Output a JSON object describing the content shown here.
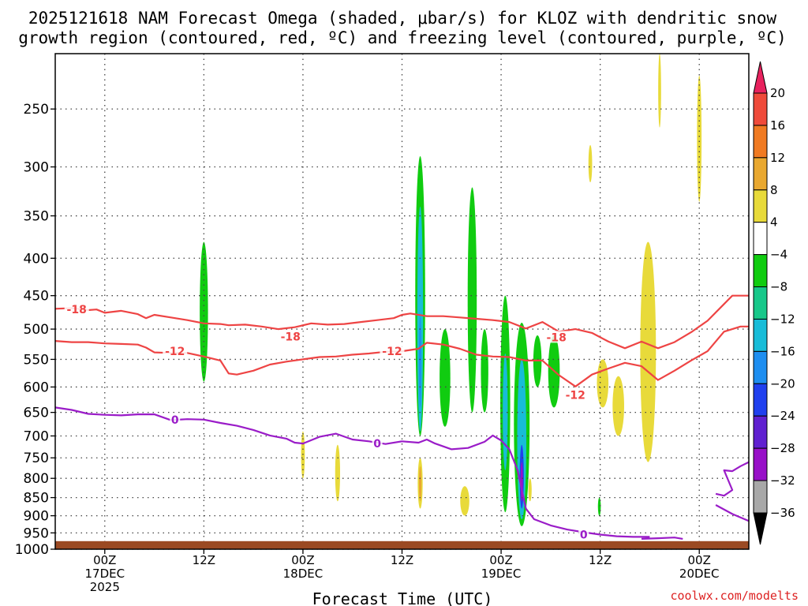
{
  "chart_data": {
    "type": "heatmap",
    "title_line1": "2025121618 NAM Forecast Omega (shaded, μbar/s) for KLOZ with dendritic snow",
    "title_line2": "growth region (contoured, red, ºC) and freezing level (contoured, purple, ºC)",
    "xlabel": "Forecast Time (UTC)",
    "ylabel": "",
    "x_unit": "forecast hour from 2025-12-16 18Z",
    "xlim": [
      0,
      84
    ],
    "ylim": [
      1000,
      210
    ],
    "y_scale": "log-pressure",
    "y_ticks": [
      250,
      300,
      350,
      400,
      450,
      500,
      550,
      600,
      650,
      700,
      750,
      800,
      850,
      900,
      950,
      1000
    ],
    "x_ticks": [
      {
        "x": 6,
        "line1": "00Z",
        "line2": "17DEC",
        "line3": "2025"
      },
      {
        "x": 18,
        "line1": "12Z",
        "line2": "",
        "line3": ""
      },
      {
        "x": 30,
        "line1": "00Z",
        "line2": "18DEC",
        "line3": ""
      },
      {
        "x": 42,
        "line1": "12Z",
        "line2": "",
        "line3": ""
      },
      {
        "x": 54,
        "line1": "00Z",
        "line2": "19DEC",
        "line3": ""
      },
      {
        "x": 66,
        "line1": "12Z",
        "line2": "",
        "line3": ""
      },
      {
        "x": 78,
        "line1": "00Z",
        "line2": "20DEC",
        "line3": ""
      }
    ],
    "grid": true,
    "colorbar": {
      "labels": [
        "20",
        "16",
        "12",
        "8",
        "4",
        "−4",
        "−8",
        "−12",
        "−16",
        "−20",
        "−24",
        "−28",
        "−32",
        "−36"
      ],
      "colors": [
        "#e8225e",
        "#ef4a3a",
        "#f07a22",
        "#e9a830",
        "#e8da3a",
        "#ffffff",
        "#10cc10",
        "#18c88a",
        "#18bcd8",
        "#1e8ef0",
        "#2040ee",
        "#6020d0",
        "#9810c8",
        "#a8a8a8",
        "#000000"
      ]
    },
    "omega_regions": [
      {
        "x": 18.0,
        "p0": 380,
        "p1": 590,
        "width": 1.0,
        "value": -6
      },
      {
        "x": 44.2,
        "p0": 290,
        "p1": 700,
        "width": 1.2,
        "value": -6
      },
      {
        "x": 44.2,
        "p0": 340,
        "p1": 690,
        "width": 0.7,
        "value": -12
      },
      {
        "x": 44.2,
        "p0": 480,
        "p1": 640,
        "width": 0.3,
        "value": -18
      },
      {
        "x": 47.2,
        "p0": 500,
        "p1": 680,
        "width": 1.3,
        "value": -6
      },
      {
        "x": 50.5,
        "p0": 320,
        "p1": 650,
        "width": 1.1,
        "value": -6
      },
      {
        "x": 52.0,
        "p0": 500,
        "p1": 650,
        "width": 0.9,
        "value": -6
      },
      {
        "x": 54.5,
        "p0": 450,
        "p1": 890,
        "width": 1.2,
        "value": -6
      },
      {
        "x": 54.5,
        "p0": 540,
        "p1": 780,
        "width": 0.6,
        "value": -12
      },
      {
        "x": 56.5,
        "p0": 490,
        "p1": 930,
        "width": 1.9,
        "value": -6
      },
      {
        "x": 56.5,
        "p0": 550,
        "p1": 910,
        "width": 1.1,
        "value": -12
      },
      {
        "x": 56.5,
        "p0": 720,
        "p1": 880,
        "width": 0.5,
        "value": -20
      },
      {
        "x": 56.5,
        "p0": 760,
        "p1": 860,
        "width": 0.25,
        "value": -30
      },
      {
        "x": 58.4,
        "p0": 510,
        "p1": 600,
        "width": 1.0,
        "value": -6
      },
      {
        "x": 60.4,
        "p0": 510,
        "p1": 640,
        "width": 1.4,
        "value": -6
      },
      {
        "x": 65.9,
        "p0": 850,
        "p1": 900,
        "width": 0.35,
        "value": -6
      },
      {
        "x": 30.0,
        "p0": 690,
        "p1": 800,
        "width": 0.45,
        "value": 5
      },
      {
        "x": 34.2,
        "p0": 720,
        "p1": 860,
        "width": 0.6,
        "value": 5
      },
      {
        "x": 44.2,
        "p0": 750,
        "p1": 880,
        "width": 0.6,
        "value": 6
      },
      {
        "x": 44.2,
        "p0": 770,
        "p1": 860,
        "width": 0.3,
        "value": 9
      },
      {
        "x": 49.6,
        "p0": 820,
        "p1": 900,
        "width": 1.1,
        "value": 5
      },
      {
        "x": 57.5,
        "p0": 800,
        "p1": 860,
        "width": 0.4,
        "value": 5
      },
      {
        "x": 64.8,
        "p0": 280,
        "p1": 315,
        "width": 0.45,
        "value": 5
      },
      {
        "x": 73.2,
        "p0": 210,
        "p1": 265,
        "width": 0.35,
        "value": 5
      },
      {
        "x": 78.0,
        "p0": 225,
        "p1": 335,
        "width": 0.55,
        "value": 5
      },
      {
        "x": 66.3,
        "p0": 550,
        "p1": 640,
        "width": 1.4,
        "value": 5
      },
      {
        "x": 68.2,
        "p0": 580,
        "p1": 700,
        "width": 1.4,
        "value": 5
      },
      {
        "x": 71.8,
        "p0": 380,
        "p1": 760,
        "width": 1.9,
        "value": 5
      }
    ],
    "series": [
      {
        "name": "-18 °C isotherm",
        "color": "#ee4444",
        "label": "-18",
        "label_positions": [
          [
            2.6,
            470
          ],
          [
            28.5,
            512
          ],
          [
            60.7,
            513
          ]
        ],
        "x": [
          0,
          2,
          4,
          5,
          6,
          8,
          10,
          11,
          12,
          14,
          16,
          18,
          20,
          21,
          23,
          25,
          27,
          29,
          31,
          33,
          35,
          37,
          39,
          41,
          42,
          43,
          45,
          47,
          49,
          51,
          53,
          55,
          57,
          59,
          61,
          63,
          65,
          67,
          69,
          71,
          73,
          75,
          77,
          79,
          81,
          82,
          84
        ],
        "y": [
          469,
          468,
          471,
          470,
          475,
          472,
          477,
          483,
          478,
          482,
          486,
          491,
          492,
          494,
          493,
          496,
          500,
          497,
          491,
          493,
          492,
          489,
          486,
          483,
          478,
          476,
          480,
          480,
          482,
          484,
          486,
          489,
          499,
          489,
          504,
          500,
          506,
          520,
          531,
          520,
          531,
          521,
          505,
          487,
          462,
          450,
          450
        ]
      },
      {
        "name": "-12 °C isotherm",
        "color": "#ee4444",
        "label": "-12",
        "label_positions": [
          [
            14.5,
            536
          ],
          [
            40.8,
            536
          ],
          [
            63.0,
            615
          ]
        ],
        "x": [
          0,
          2,
          4,
          6,
          8,
          10,
          11,
          12,
          14,
          16,
          18,
          20,
          21,
          22,
          24,
          26,
          28,
          30,
          32,
          34,
          36,
          38,
          40,
          42,
          44,
          45,
          47,
          49,
          51,
          53,
          55,
          57,
          59,
          61,
          63,
          65,
          67,
          69,
          71,
          73,
          75,
          77,
          79,
          81,
          83,
          84
        ],
        "y": [
          519,
          521,
          521,
          523,
          524,
          525,
          530,
          538,
          539,
          539,
          545,
          552,
          575,
          577,
          570,
          559,
          554,
          550,
          546,
          545,
          542,
          540,
          537,
          536,
          532,
          522,
          525,
          532,
          542,
          545,
          546,
          552,
          552,
          578,
          599,
          577,
          566,
          556,
          562,
          587,
          570,
          552,
          536,
          504,
          496,
          496
        ]
      },
      {
        "name": "0 °C freezing level",
        "color": "#9a1cc8",
        "label": "0",
        "label_positions": [
          [
            14.5,
            665
          ],
          [
            39.0,
            717
          ],
          [
            64.0,
            955
          ]
        ],
        "x": [
          0,
          2,
          4,
          6,
          8,
          10,
          12,
          14,
          16,
          18,
          20,
          22,
          24,
          26,
          28,
          29,
          30,
          32,
          34,
          36,
          38,
          40,
          42,
          44,
          45,
          46,
          48,
          50,
          52,
          53,
          54,
          55,
          56,
          57,
          58,
          60,
          62,
          64,
          66,
          68,
          70,
          72
        ],
        "y": [
          640,
          645,
          653,
          655,
          656,
          654,
          654,
          666,
          664,
          665,
          672,
          678,
          687,
          699,
          706,
          715,
          717,
          702,
          695,
          708,
          712,
          718,
          712,
          715,
          708,
          717,
          730,
          727,
          713,
          699,
          710,
          730,
          780,
          880,
          910,
          928,
          940,
          948,
          955,
          960,
          962,
          962
        ]
      },
      {
        "name": "0 °C freezing level (east segment)",
        "color": "#9a1cc8",
        "label": "",
        "label_positions": [],
        "x": [
          80,
          81,
          82,
          81,
          82,
          83,
          84
        ],
        "y": [
          840,
          845,
          830,
          780,
          782,
          770,
          760
        ]
      },
      {
        "name": "0 °C freezing level (lower east)",
        "color": "#9a1cc8",
        "label": "",
        "label_positions": [],
        "x": [
          80,
          82,
          84
        ],
        "y": [
          870,
          895,
          915
        ]
      },
      {
        "name": "0 °C freezing level (surface segment)",
        "color": "#9a1cc8",
        "label": "",
        "label_positions": [],
        "x": [
          71,
          73,
          75,
          76
        ],
        "y": [
          968,
          966,
          964,
          968
        ]
      }
    ],
    "surface": {
      "label": "terrain",
      "color": "#9b4a23",
      "top_p": 975
    }
  },
  "footer": {
    "xlabel": "Forecast Time (UTC)",
    "credit": "coolwx.com/modelts"
  }
}
